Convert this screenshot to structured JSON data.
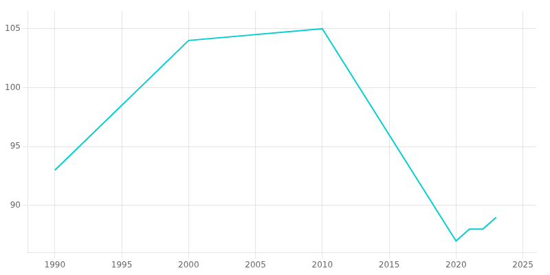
{
  "chart_data": {
    "type": "line",
    "x": [
      1990,
      2000,
      2010,
      2020,
      2021,
      2022,
      2023
    ],
    "values": [
      93,
      104,
      105,
      87,
      88,
      88,
      89
    ],
    "color": "#00CED1",
    "xlim": [
      1988,
      2026
    ],
    "ylim": [
      86,
      106.5
    ],
    "xticks": [
      1990,
      1995,
      2000,
      2005,
      2010,
      2015,
      2020,
      2025
    ],
    "yticks": [
      90,
      95,
      100,
      105
    ],
    "grid": true
  }
}
